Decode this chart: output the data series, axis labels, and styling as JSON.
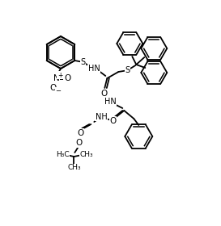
{
  "bg": "#ffffff",
  "lc": "black",
  "lw": 1.3,
  "figsize": [
    2.73,
    2.8
  ],
  "dpi": 100,
  "xlim": [
    0,
    273
  ],
  "ylim": [
    0,
    280
  ]
}
